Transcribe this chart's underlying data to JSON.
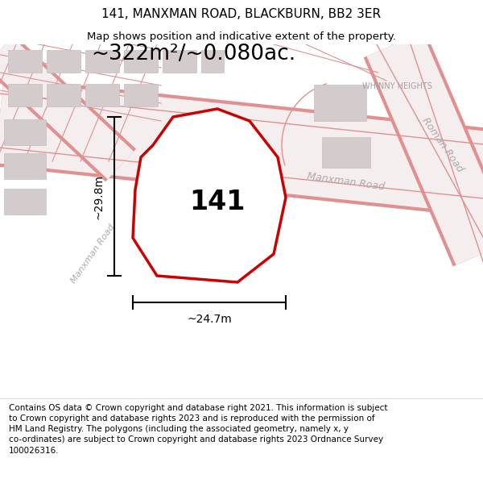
{
  "title": "141, MANXMAN ROAD, BLACKBURN, BB2 3ER",
  "subtitle": "Map shows position and indicative extent of the property.",
  "area_text": "~322m²/~0.080ac.",
  "number_label": "141",
  "dim_vertical": "~29.8m",
  "dim_horizontal": "~24.7m",
  "footer": "Contains OS data © Crown copyright and database right 2021. This information is subject to Crown copyright and database rights 2023 and is reproduced with the permission of HM Land Registry. The polygons (including the associated geometry, namely x, y co-ordinates) are subject to Crown copyright and database rights 2023 Ordnance Survey 100026316.",
  "title_fontsize": 11,
  "subtitle_fontsize": 9.5,
  "area_fontsize": 19,
  "number_fontsize": 24,
  "dim_fontsize": 10,
  "road_label_fontsize": 9,
  "whinny_fontsize": 7,
  "bg_color": "#f7f0f0",
  "road_fill": "#f5eeee",
  "road_line": "#e09090",
  "road_line2": "#d08888",
  "building_fill": "#d4cccc",
  "building_edge": "#c8c0c0",
  "property_edge": "#cc0000",
  "property_fill": "#ffffff",
  "road_label_color": "#b0a8a8",
  "whinny_color": "#a8a0a0",
  "dim_color": "#000000",
  "text_color": "#000000",
  "footer_fontsize": 7.5
}
